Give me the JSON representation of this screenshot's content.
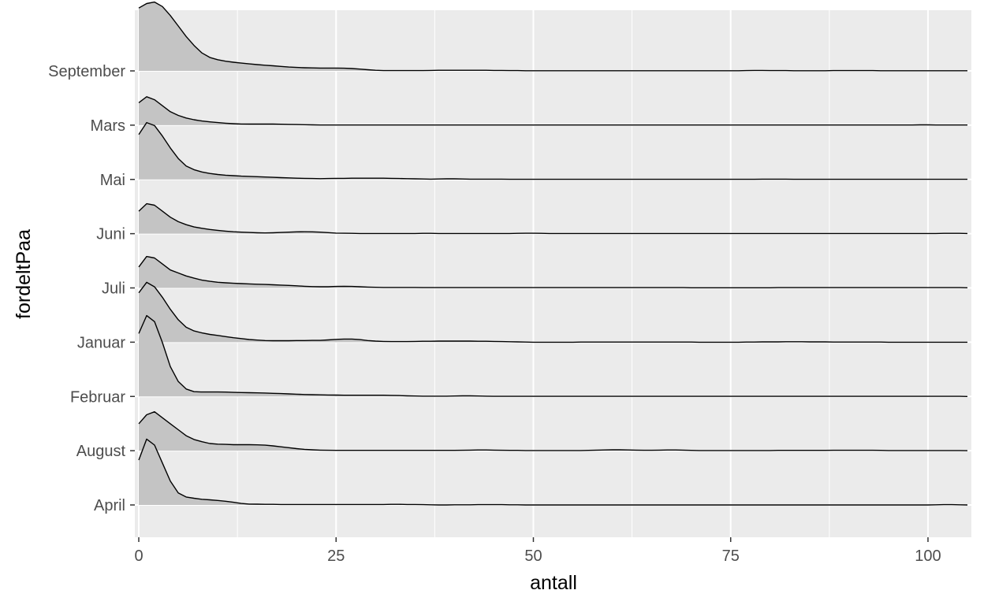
{
  "chart_data": {
    "type": "ridgeline",
    "xlabel": "antall",
    "ylabel": "fordeltPaa",
    "xlim": [
      -0.5,
      105.5
    ],
    "x_ticks": [
      0,
      25,
      50,
      75,
      100
    ],
    "x_tick_labels": [
      "0",
      "25",
      "50",
      "75",
      "100"
    ],
    "grid": true,
    "background": "#ebebeb",
    "fill_color": "#c4c4c4",
    "line_color": "#000000",
    "categories": [
      "April",
      "August",
      "Februar",
      "Januar",
      "Juli",
      "Juni",
      "Mai",
      "Mars",
      "September"
    ],
    "x": [
      0,
      1,
      2,
      3,
      4,
      5,
      6,
      7,
      8,
      9,
      10,
      11,
      12,
      13,
      14,
      15,
      16,
      17,
      18,
      19,
      20,
      21,
      22,
      23,
      24,
      25,
      26,
      27,
      28,
      29,
      30,
      31,
      32,
      33,
      34,
      35,
      36,
      37,
      38,
      39,
      40,
      41,
      42,
      43,
      44,
      45,
      46,
      47,
      48,
      49,
      50,
      51,
      52,
      53,
      54,
      55,
      56,
      57,
      58,
      59,
      60,
      61,
      62,
      63,
      64,
      65,
      66,
      67,
      68,
      69,
      70,
      71,
      72,
      73,
      74,
      75,
      76,
      77,
      78,
      79,
      80,
      81,
      82,
      83,
      84,
      85,
      86,
      87,
      88,
      89,
      90,
      91,
      92,
      93,
      94,
      95,
      96,
      97,
      98,
      99,
      100,
      101,
      102,
      103,
      104,
      105
    ],
    "series": [
      {
        "name": "April",
        "values": [
          0.3,
          0.44,
          0.4,
          0.28,
          0.16,
          0.08,
          0.053,
          0.045,
          0.038,
          0.034,
          0.03,
          0.025,
          0.018,
          0.01,
          0.006,
          0.005,
          0.004,
          0.004,
          0.003,
          0.003,
          0.003,
          0.003,
          0.003,
          0.003,
          0.003,
          0.003,
          0.003,
          0.003,
          0.003,
          0.003,
          0.003,
          0.003,
          0.004,
          0.004,
          0.003,
          0.003,
          0.002,
          0.001,
          0,
          0,
          0.001,
          0.001,
          0.001,
          0.002,
          0.002,
          0.002,
          0.002,
          0.001,
          0.001,
          0,
          0,
          0,
          0,
          0,
          0,
          0,
          0,
          0,
          0,
          0,
          0,
          0,
          0,
          0,
          0,
          0,
          0,
          0,
          0,
          0,
          0,
          0,
          0,
          0,
          0,
          0,
          0,
          0,
          0,
          0,
          0,
          0,
          0,
          0,
          0,
          0,
          0,
          0,
          0,
          0,
          0,
          0,
          0,
          0,
          0,
          0,
          0,
          0,
          0,
          0,
          0,
          0.001,
          0.002,
          0.002,
          0.001,
          0
        ]
      },
      {
        "name": "August",
        "values": [
          0.18,
          0.24,
          0.26,
          0.22,
          0.18,
          0.14,
          0.1,
          0.075,
          0.06,
          0.048,
          0.044,
          0.042,
          0.04,
          0.04,
          0.04,
          0.039,
          0.037,
          0.032,
          0.026,
          0.02,
          0.014,
          0.009,
          0.006,
          0.004,
          0.003,
          0.002,
          0.002,
          0.002,
          0.002,
          0.002,
          0.002,
          0.002,
          0.002,
          0.002,
          0.002,
          0.002,
          0.002,
          0.002,
          0.002,
          0.002,
          0.002,
          0.003,
          0.004,
          0.005,
          0.005,
          0.004,
          0.003,
          0.002,
          0.002,
          0.001,
          0.001,
          0.001,
          0.001,
          0.001,
          0.001,
          0.001,
          0.001,
          0.002,
          0.004,
          0.005,
          0.006,
          0.006,
          0.005,
          0.004,
          0.003,
          0.003,
          0.004,
          0.005,
          0.005,
          0.004,
          0.002,
          0.001,
          0.001,
          0.001,
          0.001,
          0.001,
          0.001,
          0.001,
          0.001,
          0.001,
          0.001,
          0.002,
          0.002,
          0.002,
          0.002,
          0.002,
          0.002,
          0.002,
          0.003,
          0.003,
          0.003,
          0.003,
          0.003,
          0.003,
          0.002,
          0.001,
          0.001,
          0.001,
          0.001,
          0.001,
          0.001,
          0.001,
          0.001,
          0.001,
          0.001,
          0
        ]
      },
      {
        "name": "Februar",
        "values": [
          0.42,
          0.54,
          0.5,
          0.36,
          0.2,
          0.1,
          0.05,
          0.032,
          0.03,
          0.03,
          0.03,
          0.029,
          0.027,
          0.026,
          0.025,
          0.024,
          0.023,
          0.021,
          0.019,
          0.017,
          0.015,
          0.013,
          0.012,
          0.011,
          0.01,
          0.009,
          0.008,
          0.008,
          0.008,
          0.008,
          0.008,
          0.008,
          0.007,
          0.006,
          0.004,
          0.003,
          0.002,
          0.002,
          0.002,
          0.002,
          0.003,
          0.004,
          0.004,
          0.003,
          0.002,
          0.001,
          0.001,
          0.001,
          0.001,
          0.001,
          0.001,
          0.001,
          0.001,
          0.001,
          0.001,
          0.001,
          0.001,
          0.001,
          0.001,
          0.001,
          0.001,
          0.001,
          0.001,
          0.001,
          0.001,
          0.001,
          0.001,
          0.001,
          0.001,
          0.001,
          0.001,
          0.001,
          0.001,
          0.001,
          0.001,
          0.001,
          0.001,
          0.001,
          0.001,
          0.001,
          0.001,
          0.001,
          0.001,
          0.001,
          0.001,
          0.001,
          0.001,
          0.001,
          0.001,
          0.001,
          0.001,
          0.001,
          0.001,
          0.001,
          0.001,
          0.001,
          0.001,
          0.001,
          0.001,
          0.001,
          0.001,
          0.001,
          0.001,
          0.001,
          0.001,
          0
        ]
      },
      {
        "name": "Januar",
        "values": [
          0.33,
          0.4,
          0.37,
          0.3,
          0.22,
          0.15,
          0.1,
          0.075,
          0.062,
          0.052,
          0.045,
          0.037,
          0.03,
          0.024,
          0.018,
          0.014,
          0.011,
          0.01,
          0.01,
          0.01,
          0.011,
          0.011,
          0.012,
          0.012,
          0.015,
          0.019,
          0.021,
          0.021,
          0.017,
          0.011,
          0.007,
          0.005,
          0.004,
          0.004,
          0.004,
          0.005,
          0.006,
          0.006,
          0.007,
          0.007,
          0.007,
          0.007,
          0.007,
          0.006,
          0.006,
          0.005,
          0.004,
          0.003,
          0.002,
          0.001,
          0,
          0,
          0,
          0,
          0,
          0,
          0.001,
          0.001,
          0.001,
          0.001,
          0.001,
          0.001,
          0.001,
          0.001,
          0.001,
          0.001,
          0.001,
          0.001,
          0.001,
          0.001,
          0.001,
          0,
          0,
          0,
          0,
          0,
          0,
          0.001,
          0.001,
          0.002,
          0.002,
          0.002,
          0.003,
          0.003,
          0.003,
          0.002,
          0.002,
          0.002,
          0.001,
          0.001,
          0.001,
          0.001,
          0.001,
          0.001,
          0.001,
          0,
          0,
          0,
          0,
          0,
          0,
          0,
          0,
          0,
          0,
          0
        ]
      },
      {
        "name": "Juli",
        "values": [
          0.14,
          0.21,
          0.2,
          0.16,
          0.12,
          0.1,
          0.08,
          0.065,
          0.052,
          0.044,
          0.038,
          0.034,
          0.031,
          0.029,
          0.027,
          0.025,
          0.023,
          0.021,
          0.019,
          0.017,
          0.014,
          0.011,
          0.009,
          0.008,
          0.008,
          0.01,
          0.011,
          0.01,
          0.008,
          0.006,
          0.004,
          0.003,
          0.003,
          0.003,
          0.003,
          0.003,
          0.002,
          0.002,
          0.002,
          0.002,
          0.002,
          0.002,
          0.002,
          0.002,
          0.002,
          0.002,
          0.002,
          0.002,
          0.002,
          0.002,
          0.002,
          0.002,
          0.002,
          0.002,
          0.002,
          0.002,
          0.002,
          0.002,
          0.002,
          0.002,
          0.002,
          0.002,
          0.002,
          0.002,
          0.002,
          0.002,
          0.002,
          0.002,
          0.002,
          0.002,
          0.001,
          0.001,
          0.001,
          0.001,
          0.001,
          0.001,
          0.001,
          0.001,
          0.001,
          0.001,
          0.001,
          0.002,
          0.002,
          0.002,
          0.002,
          0.002,
          0.002,
          0.002,
          0.002,
          0.002,
          0.002,
          0.002,
          0.002,
          0.002,
          0.002,
          0.002,
          0.002,
          0.002,
          0.002,
          0.002,
          0.002,
          0.002,
          0.002,
          0.002,
          0.002,
          0.001
        ]
      },
      {
        "name": "Juni",
        "values": [
          0.15,
          0.2,
          0.19,
          0.15,
          0.11,
          0.08,
          0.06,
          0.045,
          0.036,
          0.028,
          0.022,
          0.017,
          0.013,
          0.01,
          0.008,
          0.006,
          0.005,
          0.006,
          0.008,
          0.01,
          0.012,
          0.013,
          0.012,
          0.01,
          0.007,
          0.004,
          0.003,
          0.002,
          0.001,
          0.001,
          0.001,
          0.001,
          0.001,
          0.001,
          0.001,
          0.001,
          0.002,
          0.002,
          0.001,
          0.001,
          0.001,
          0.001,
          0.001,
          0.001,
          0.001,
          0.001,
          0.001,
          0.001,
          0.002,
          0.003,
          0.003,
          0.002,
          0.001,
          0.001,
          0.001,
          0.001,
          0.001,
          0.001,
          0.001,
          0.001,
          0.001,
          0.001,
          0.001,
          0.001,
          0.001,
          0.001,
          0.001,
          0.001,
          0.001,
          0.001,
          0.001,
          0.001,
          0.001,
          0.001,
          0.001,
          0.001,
          0.001,
          0.001,
          0.001,
          0.001,
          0.001,
          0.001,
          0.001,
          0.001,
          0.001,
          0.001,
          0.001,
          0.001,
          0.001,
          0.001,
          0.001,
          0.001,
          0.001,
          0.001,
          0.001,
          0.001,
          0.001,
          0.001,
          0.001,
          0.001,
          0.001,
          0.001,
          0.002,
          0.002,
          0.002,
          0.001
        ]
      },
      {
        "name": "Mai",
        "values": [
          0.3,
          0.38,
          0.36,
          0.29,
          0.21,
          0.14,
          0.09,
          0.065,
          0.05,
          0.04,
          0.033,
          0.028,
          0.025,
          0.022,
          0.02,
          0.018,
          0.016,
          0.014,
          0.012,
          0.01,
          0.008,
          0.007,
          0.006,
          0.005,
          0.006,
          0.007,
          0.007,
          0.008,
          0.008,
          0.008,
          0.008,
          0.008,
          0.007,
          0.006,
          0.005,
          0.004,
          0.003,
          0.002,
          0.003,
          0.004,
          0.004,
          0.003,
          0.002,
          0.002,
          0.002,
          0.002,
          0.002,
          0.001,
          0.001,
          0.001,
          0.001,
          0.001,
          0.001,
          0.001,
          0.001,
          0.001,
          0.001,
          0.001,
          0.001,
          0.001,
          0.001,
          0.001,
          0.001,
          0.001,
          0.001,
          0.001,
          0.001,
          0.001,
          0.001,
          0.001,
          0.001,
          0.001,
          0.001,
          0.001,
          0.001,
          0.001,
          0.001,
          0.001,
          0.001,
          0.002,
          0.002,
          0.002,
          0.002,
          0.001,
          0.001,
          0.001,
          0.001,
          0.001,
          0.001,
          0.001,
          0.001,
          0.001,
          0.001,
          0.001,
          0.001,
          0.001,
          0.001,
          0.001,
          0.001,
          0.001,
          0.001,
          0.001,
          0.001,
          0.001,
          0.001,
          0.001
        ]
      },
      {
        "name": "Mars",
        "values": [
          0.15,
          0.19,
          0.17,
          0.13,
          0.09,
          0.065,
          0.048,
          0.036,
          0.028,
          0.022,
          0.017,
          0.013,
          0.01,
          0.008,
          0.007,
          0.007,
          0.007,
          0.007,
          0.006,
          0.005,
          0.004,
          0.003,
          0.002,
          0.001,
          0.001,
          0.001,
          0.001,
          0.001,
          0.001,
          0.001,
          0.001,
          0.001,
          0.001,
          0.001,
          0.001,
          0.001,
          0.001,
          0.001,
          0.001,
          0.001,
          0.001,
          0.001,
          0.001,
          0.001,
          0.001,
          0.001,
          0.001,
          0.001,
          0.001,
          0.001,
          0.001,
          0.001,
          0.001,
          0.001,
          0.001,
          0.001,
          0.001,
          0.001,
          0.001,
          0.001,
          0.001,
          0.001,
          0.001,
          0.001,
          0.001,
          0.001,
          0.001,
          0.001,
          0.001,
          0.001,
          0.001,
          0.001,
          0.001,
          0.001,
          0.001,
          0.001,
          0.001,
          0.001,
          0.001,
          0.001,
          0.001,
          0.001,
          0.001,
          0.001,
          0.001,
          0.001,
          0.001,
          0.001,
          0.001,
          0.001,
          0.001,
          0.001,
          0.001,
          0.001,
          0.001,
          0.001,
          0.001,
          0.001,
          0.001,
          0.002,
          0.002,
          0.001,
          0.001,
          0.001,
          0.001,
          0.001
        ]
      },
      {
        "name": "September",
        "values": [
          0.42,
          0.45,
          0.46,
          0.43,
          0.37,
          0.3,
          0.23,
          0.17,
          0.12,
          0.09,
          0.075,
          0.065,
          0.058,
          0.052,
          0.047,
          0.042,
          0.038,
          0.034,
          0.03,
          0.026,
          0.023,
          0.021,
          0.02,
          0.019,
          0.019,
          0.019,
          0.018,
          0.016,
          0.012,
          0.008,
          0.004,
          0.002,
          0.002,
          0.002,
          0.002,
          0.002,
          0.002,
          0.003,
          0.004,
          0.004,
          0.004,
          0.004,
          0.004,
          0.004,
          0.004,
          0.003,
          0.003,
          0.002,
          0.002,
          0.001,
          0.001,
          0.001,
          0.001,
          0.001,
          0.001,
          0.001,
          0.001,
          0.001,
          0.001,
          0.001,
          0.001,
          0.001,
          0.001,
          0.001,
          0.001,
          0.001,
          0.001,
          0.001,
          0.001,
          0.001,
          0.001,
          0.001,
          0.001,
          0.001,
          0.001,
          0.001,
          0.001,
          0.002,
          0.003,
          0.003,
          0.002,
          0.002,
          0.002,
          0.001,
          0.001,
          0.001,
          0.001,
          0.001,
          0.002,
          0.002,
          0.002,
          0.002,
          0.002,
          0.002,
          0.001,
          0.001,
          0.001,
          0.001,
          0.001,
          0.001,
          0.001,
          0.001,
          0.001,
          0.001,
          0.001,
          0.001
        ]
      }
    ]
  }
}
